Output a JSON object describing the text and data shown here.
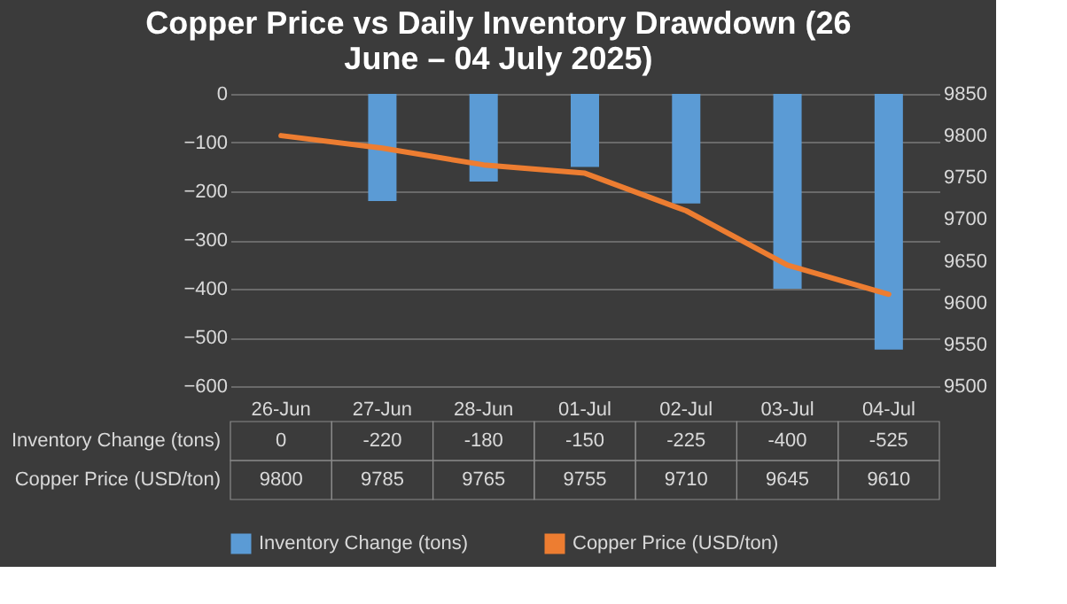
{
  "chart_data": {
    "type": "bar",
    "title": "Copper Price vs Daily Inventory Drawdown (26 June – 04 July 2025)",
    "categories": [
      "26-Jun",
      "27-Jun",
      "28-Jun",
      "01-Jul",
      "02-Jul",
      "03-Jul",
      "04-Jul"
    ],
    "series": [
      {
        "name": "Inventory Change (tons)",
        "color": "#5b9bd5",
        "values": [
          0,
          -220,
          -180,
          -150,
          -225,
          -400,
          -525
        ]
      },
      {
        "name": "Copper Price (USD/ton)",
        "type": "line",
        "axis": "y2",
        "color": "#ed7d31",
        "values": [
          9800,
          9785,
          9765,
          9755,
          9710,
          9645,
          9610
        ]
      }
    ],
    "ylim": [
      -600,
      0
    ],
    "yticks": [
      -600,
      -500,
      -400,
      -300,
      -200,
      -100,
      0
    ],
    "y2lim": [
      9500,
      9850
    ],
    "y2ticks": [
      9500,
      9550,
      9600,
      9650,
      9700,
      9750,
      9800,
      9850
    ],
    "grid": "y",
    "legend": "bottom",
    "data_labels": true
  }
}
